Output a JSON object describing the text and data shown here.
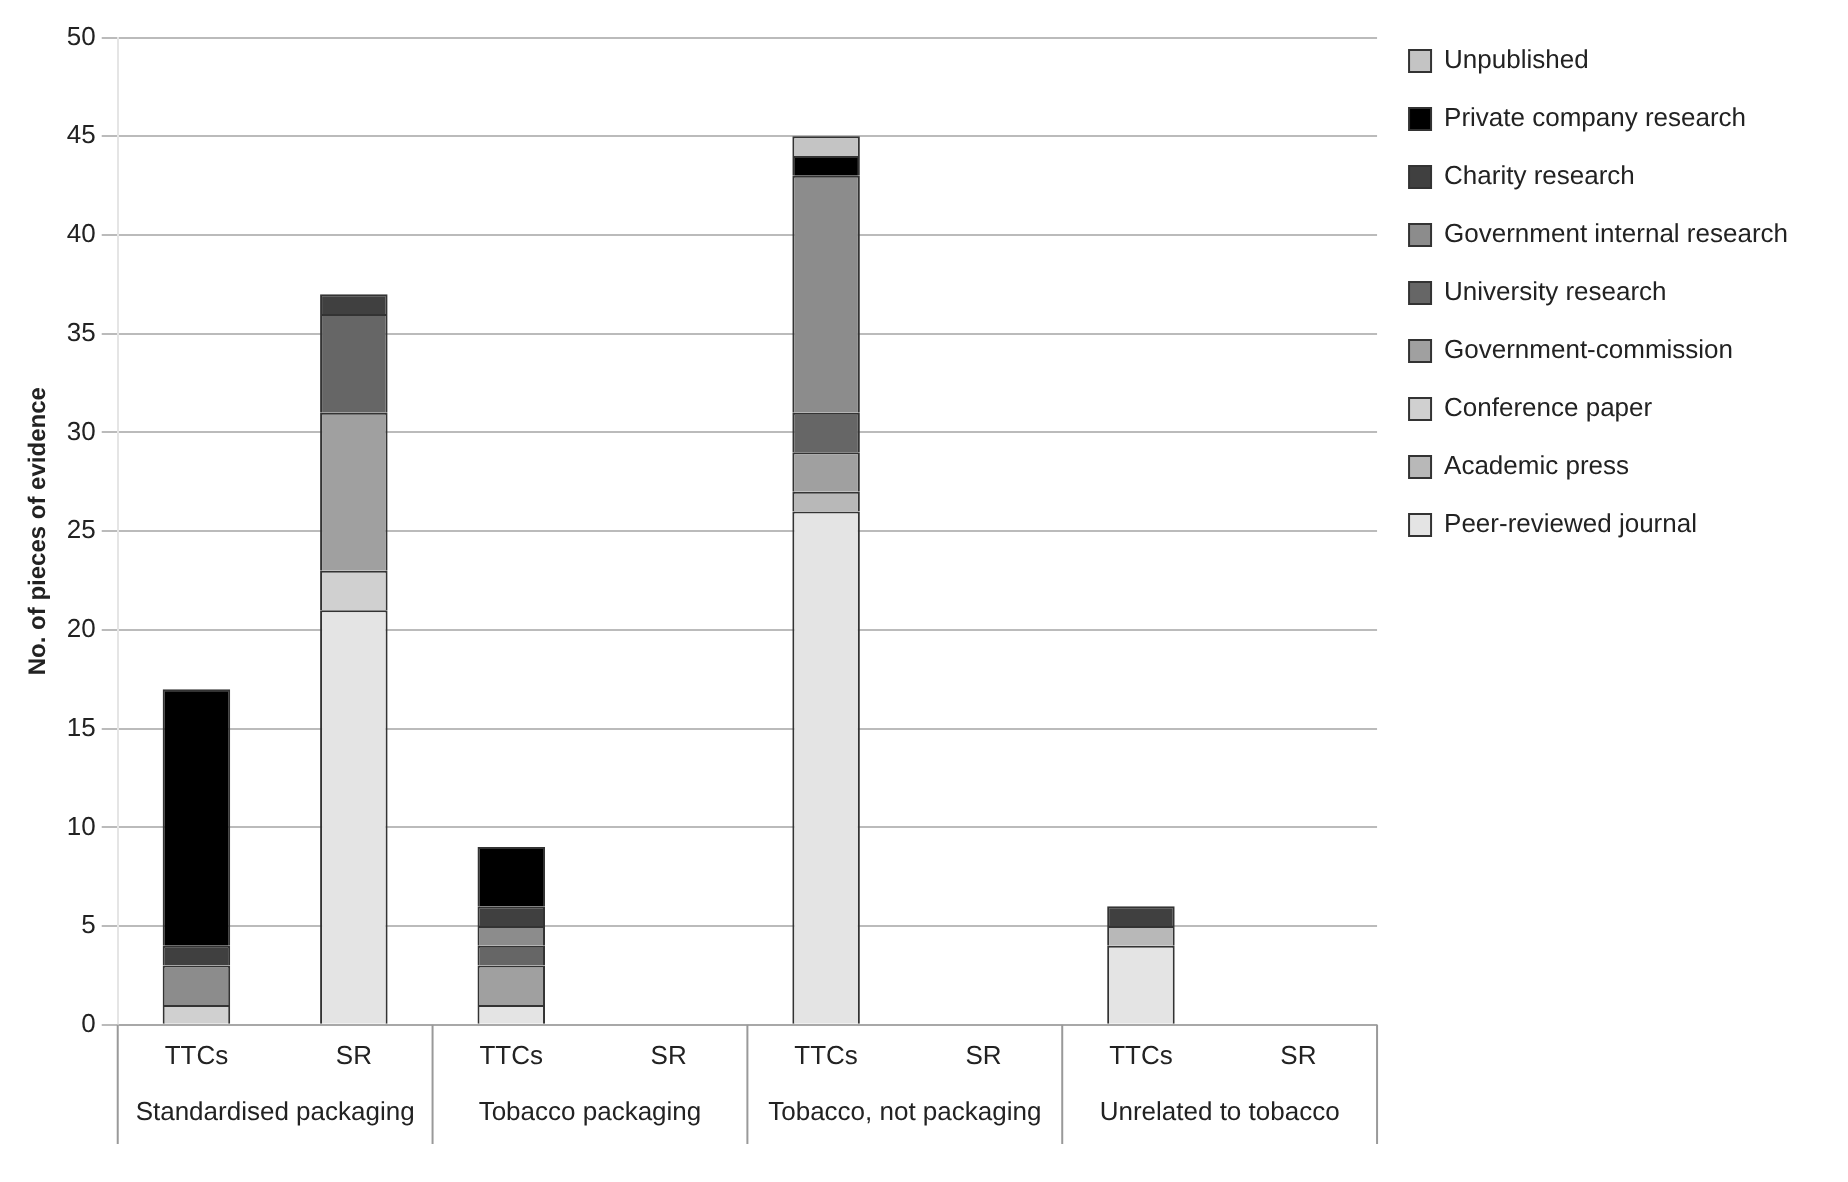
{
  "chart_data": {
    "type": "bar",
    "stacked": true,
    "ylabel": "No. of pieces of evidence",
    "categories": [
      "TTCs",
      "SR",
      "TTCs",
      "SR",
      "TTCs",
      "SR",
      "TTCs",
      "SR"
    ],
    "annotations": [
      "Standardised packaging",
      "Tobacco packaging",
      "Tobacco, not packaging",
      "Unrelated to tobacco"
    ],
    "ylim": [
      0,
      50
    ],
    "yticks": [
      0,
      5,
      10,
      15,
      20,
      25,
      30,
      35,
      40,
      45,
      50
    ],
    "grid": "y",
    "legend": "top right",
    "series": [
      {
        "name": "Peer-reviewed journal",
        "color": "#e4e4e4",
        "values": [
          0,
          21,
          1,
          0,
          26,
          0,
          4,
          0
        ]
      },
      {
        "name": "Academic press",
        "color": "#b8b8b8",
        "values": [
          0,
          0,
          0,
          0,
          1,
          0,
          1,
          0
        ]
      },
      {
        "name": "Conference paper",
        "color": "#d0d0d0",
        "values": [
          1,
          2,
          0,
          0,
          0,
          0,
          0,
          0
        ]
      },
      {
        "name": "Government-commission",
        "color": "#a0a0a0",
        "values": [
          0,
          8,
          2,
          0,
          2,
          0,
          0,
          0
        ]
      },
      {
        "name": "University research",
        "color": "#666666",
        "values": [
          0,
          5,
          1,
          0,
          2,
          0,
          0,
          0
        ]
      },
      {
        "name": "Government internal research",
        "color": "#8c8c8c",
        "values": [
          2,
          0,
          1,
          0,
          12,
          0,
          0,
          0
        ]
      },
      {
        "name": "Charity research",
        "color": "#404040",
        "values": [
          1,
          1,
          1,
          0,
          0,
          0,
          1,
          0
        ]
      },
      {
        "name": "Private company research",
        "color": "#000000",
        "values": [
          13,
          0,
          3,
          0,
          1,
          0,
          0,
          0
        ]
      },
      {
        "name": "Unpublished",
        "color": "#c4c4c4",
        "values": [
          0,
          0,
          0,
          0,
          1,
          0,
          0,
          0
        ]
      }
    ]
  }
}
